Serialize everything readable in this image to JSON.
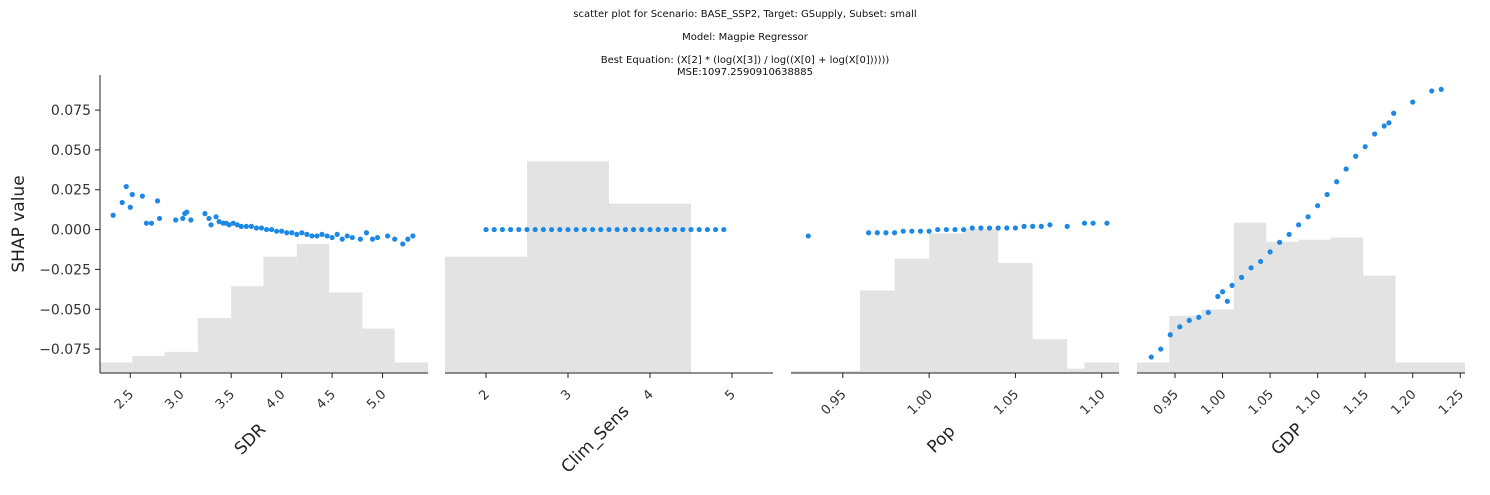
{
  "header": {
    "line1": "scatter plot for Scenario: BASE_SSP2, Target: GSupply, Subset: small",
    "line2": "Model: Magpie Regressor",
    "line3": "Best Equation: (X[2] * (log(X[3]) / log((X[0] + log(X[0])))))",
    "line4": "MSE:1097.2590910638885"
  },
  "colors": {
    "points": "#1e88e5",
    "histogram": "#e3e3e3",
    "axis": "#222222"
  },
  "chart_data": [
    {
      "type": "scatter",
      "xlabel": "SDR",
      "ylabel": "SHAP value",
      "xlim": [
        2.2,
        5.45
      ],
      "ylim": [
        -0.09,
        0.097
      ],
      "xticks": [
        2.5,
        3.0,
        3.5,
        4.0,
        4.5,
        5.0
      ],
      "xtick_labels": [
        "2.5",
        "3.0",
        "3.5",
        "4.0",
        "4.5",
        "5.0"
      ],
      "yticks": [
        0.075,
        0.05,
        0.025,
        0.0,
        -0.025,
        -0.05,
        -0.075
      ],
      "ytick_labels": [
        "0.075",
        "0.050",
        "0.025",
        "0.000",
        "−0.025",
        "−0.050",
        "−0.075"
      ],
      "points": [
        [
          2.33,
          0.009
        ],
        [
          2.42,
          0.017
        ],
        [
          2.46,
          0.027
        ],
        [
          2.5,
          0.014
        ],
        [
          2.52,
          0.022
        ],
        [
          2.62,
          0.021
        ],
        [
          2.66,
          0.004
        ],
        [
          2.71,
          0.004
        ],
        [
          2.77,
          0.018
        ],
        [
          2.79,
          0.007
        ],
        [
          2.95,
          0.006
        ],
        [
          3.02,
          0.007
        ],
        [
          3.04,
          0.01
        ],
        [
          3.06,
          0.011
        ],
        [
          3.1,
          0.006
        ],
        [
          3.24,
          0.01
        ],
        [
          3.28,
          0.007
        ],
        [
          3.3,
          0.003
        ],
        [
          3.35,
          0.008
        ],
        [
          3.38,
          0.005
        ],
        [
          3.42,
          0.004
        ],
        [
          3.45,
          0.004
        ],
        [
          3.48,
          0.003
        ],
        [
          3.52,
          0.004
        ],
        [
          3.56,
          0.003
        ],
        [
          3.6,
          0.002
        ],
        [
          3.65,
          0.002
        ],
        [
          3.7,
          0.002
        ],
        [
          3.75,
          0.001
        ],
        [
          3.8,
          0.001
        ],
        [
          3.85,
          0.0
        ],
        [
          3.9,
          0.0
        ],
        [
          3.95,
          -0.001
        ],
        [
          4.0,
          -0.001
        ],
        [
          4.05,
          -0.002
        ],
        [
          4.1,
          -0.002
        ],
        [
          4.15,
          -0.003
        ],
        [
          4.2,
          -0.002
        ],
        [
          4.25,
          -0.003
        ],
        [
          4.3,
          -0.004
        ],
        [
          4.35,
          -0.004
        ],
        [
          4.4,
          -0.003
        ],
        [
          4.45,
          -0.004
        ],
        [
          4.5,
          -0.005
        ],
        [
          4.55,
          -0.003
        ],
        [
          4.6,
          -0.006
        ],
        [
          4.65,
          -0.004
        ],
        [
          4.7,
          -0.005
        ],
        [
          4.78,
          -0.006
        ],
        [
          4.84,
          -0.002
        ],
        [
          4.9,
          -0.006
        ],
        [
          4.95,
          -0.005
        ],
        [
          5.05,
          -0.004
        ],
        [
          5.12,
          -0.006
        ],
        [
          5.2,
          -0.009
        ],
        [
          5.25,
          -0.006
        ],
        [
          5.3,
          -0.004
        ]
      ],
      "histogram": {
        "edges": [
          2.2,
          2.52,
          2.84,
          3.17,
          3.5,
          3.82,
          4.15,
          4.47,
          4.8,
          5.12,
          5.45
        ],
        "heights": [
          0.05,
          0.08,
          0.1,
          0.26,
          0.41,
          0.55,
          0.61,
          0.38,
          0.21,
          0.05
        ]
      }
    },
    {
      "type": "scatter",
      "xlabel": "Clim_Sens",
      "xlim": [
        1.5,
        5.5
      ],
      "xticks": [
        2,
        3,
        4,
        5
      ],
      "xtick_labels": [
        "2",
        "3",
        "4",
        "5"
      ],
      "points": [
        [
          2.0,
          0.0
        ],
        [
          2.1,
          0.0
        ],
        [
          2.2,
          0.0
        ],
        [
          2.3,
          0.0
        ],
        [
          2.4,
          0.0
        ],
        [
          2.5,
          0.0
        ],
        [
          2.6,
          0.0
        ],
        [
          2.7,
          0.0
        ],
        [
          2.8,
          0.0
        ],
        [
          2.9,
          0.0
        ],
        [
          3.0,
          0.0
        ],
        [
          3.1,
          0.0
        ],
        [
          3.2,
          0.0
        ],
        [
          3.3,
          0.0
        ],
        [
          3.4,
          0.0
        ],
        [
          3.5,
          0.0
        ],
        [
          3.6,
          0.0
        ],
        [
          3.7,
          0.0
        ],
        [
          3.8,
          0.0
        ],
        [
          3.9,
          0.0
        ],
        [
          4.0,
          0.0
        ],
        [
          4.1,
          0.0
        ],
        [
          4.2,
          0.0
        ],
        [
          4.3,
          0.0
        ],
        [
          4.4,
          0.0
        ],
        [
          4.5,
          0.0
        ],
        [
          4.6,
          0.0
        ],
        [
          4.7,
          0.0
        ],
        [
          4.8,
          0.0
        ],
        [
          4.9,
          0.0
        ]
      ],
      "histogram": {
        "edges": [
          1.5,
          2.5,
          3.5,
          4.5
        ],
        "heights": [
          0.55,
          1.0,
          0.8
        ]
      }
    },
    {
      "type": "scatter",
      "xlabel": "Pop",
      "xlim": [
        0.92,
        1.11
      ],
      "xticks": [
        0.95,
        1.0,
        1.05,
        1.1
      ],
      "xtick_labels": [
        "0.95",
        "1.00",
        "1.05",
        "1.10"
      ],
      "points": [
        [
          0.93,
          -0.004
        ],
        [
          0.965,
          -0.002
        ],
        [
          0.97,
          -0.002
        ],
        [
          0.975,
          -0.002
        ],
        [
          0.98,
          -0.002
        ],
        [
          0.985,
          -0.001
        ],
        [
          0.99,
          -0.001
        ],
        [
          0.995,
          -0.001
        ],
        [
          1.0,
          -0.001
        ],
        [
          1.005,
          0.0
        ],
        [
          1.01,
          0.0
        ],
        [
          1.015,
          0.0
        ],
        [
          1.02,
          0.0
        ],
        [
          1.025,
          0.001
        ],
        [
          1.03,
          0.001
        ],
        [
          1.035,
          0.001
        ],
        [
          1.04,
          0.001
        ],
        [
          1.045,
          0.001
        ],
        [
          1.05,
          0.001
        ],
        [
          1.055,
          0.002
        ],
        [
          1.06,
          0.002
        ],
        [
          1.065,
          0.002
        ],
        [
          1.07,
          0.003
        ],
        [
          1.08,
          0.002
        ],
        [
          1.09,
          0.004
        ],
        [
          1.095,
          0.004
        ],
        [
          1.103,
          0.004
        ]
      ],
      "histogram": {
        "edges": [
          0.92,
          0.96,
          0.98,
          1.0,
          1.02,
          1.04,
          1.06,
          1.08,
          1.09,
          1.11
        ],
        "heights": [
          0.01,
          0.39,
          0.54,
          0.66,
          0.68,
          0.52,
          0.16,
          0.02,
          0.05
        ]
      }
    },
    {
      "type": "scatter",
      "xlabel": "GDP",
      "xlim": [
        0.91,
        1.255
      ],
      "xticks": [
        0.95,
        1.0,
        1.05,
        1.1,
        1.15,
        1.2,
        1.25
      ],
      "xtick_labels": [
        "0.95",
        "1.00",
        "1.05",
        "1.10",
        "1.15",
        "1.20",
        "1.25"
      ],
      "points": [
        [
          0.925,
          -0.08
        ],
        [
          0.935,
          -0.075
        ],
        [
          0.945,
          -0.066
        ],
        [
          0.955,
          -0.061
        ],
        [
          0.965,
          -0.057
        ],
        [
          0.975,
          -0.055
        ],
        [
          0.985,
          -0.052
        ],
        [
          0.995,
          -0.042
        ],
        [
          1.0,
          -0.039
        ],
        [
          1.005,
          -0.045
        ],
        [
          1.01,
          -0.035
        ],
        [
          1.02,
          -0.03
        ],
        [
          1.03,
          -0.024
        ],
        [
          1.04,
          -0.02
        ],
        [
          1.05,
          -0.014
        ],
        [
          1.06,
          -0.008
        ],
        [
          1.07,
          -0.003
        ],
        [
          1.08,
          0.003
        ],
        [
          1.09,
          0.008
        ],
        [
          1.1,
          0.015
        ],
        [
          1.11,
          0.022
        ],
        [
          1.12,
          0.03
        ],
        [
          1.13,
          0.038
        ],
        [
          1.14,
          0.046
        ],
        [
          1.15,
          0.052
        ],
        [
          1.16,
          0.06
        ],
        [
          1.17,
          0.065
        ],
        [
          1.175,
          0.067
        ],
        [
          1.18,
          0.073
        ],
        [
          1.2,
          0.08
        ],
        [
          1.22,
          0.087
        ],
        [
          1.23,
          0.088
        ]
      ],
      "histogram": {
        "edges": [
          0.91,
          0.944,
          0.978,
          1.012,
          1.046,
          1.08,
          1.114,
          1.148,
          1.182,
          1.218,
          1.255
        ],
        "heights": [
          0.05,
          0.27,
          0.3,
          0.71,
          0.62,
          0.63,
          0.64,
          0.46,
          0.05,
          0.05
        ]
      }
    }
  ]
}
